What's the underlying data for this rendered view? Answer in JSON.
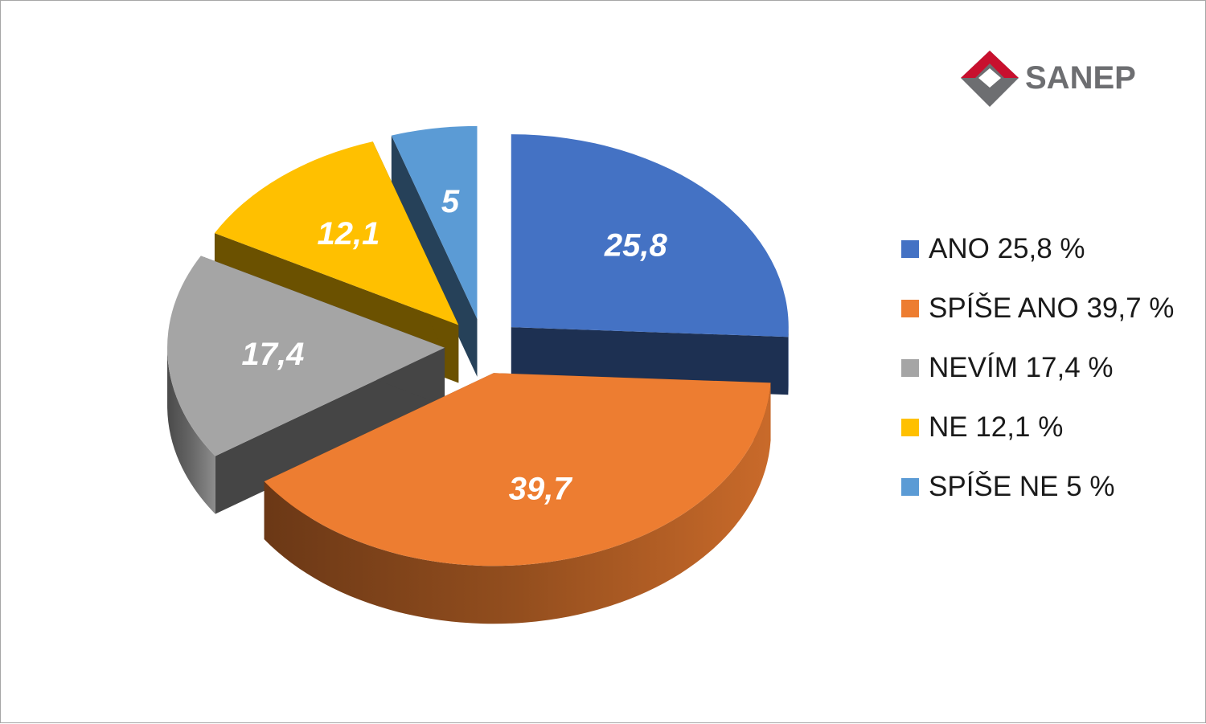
{
  "brand": {
    "name": "SANEP",
    "colors": {
      "red": "#c8102e",
      "gray": "#6d6e71"
    }
  },
  "chart_data": {
    "type": "pie",
    "style": "3d-exploded",
    "categories": [
      "ANO",
      "SPÍŠE ANO",
      "NEVÍM",
      "NE",
      "SPÍŠE NE"
    ],
    "values": [
      25.8,
      39.7,
      17.4,
      12.1,
      5
    ],
    "data_labels": [
      "25,8",
      "39,7",
      "17,4",
      "12,1",
      "5"
    ],
    "colors": [
      "#4472c4",
      "#ed7d31",
      "#a5a5a5",
      "#ffc000",
      "#5b9bd5"
    ],
    "legend": {
      "position": "right",
      "entries": [
        "ANO 25,8 %",
        "SPÍŠE ANO 39,7 %",
        "NEVÍM 17,4 %",
        "NE 12,1 %",
        "SPÍŠE NE 5 %"
      ]
    }
  }
}
